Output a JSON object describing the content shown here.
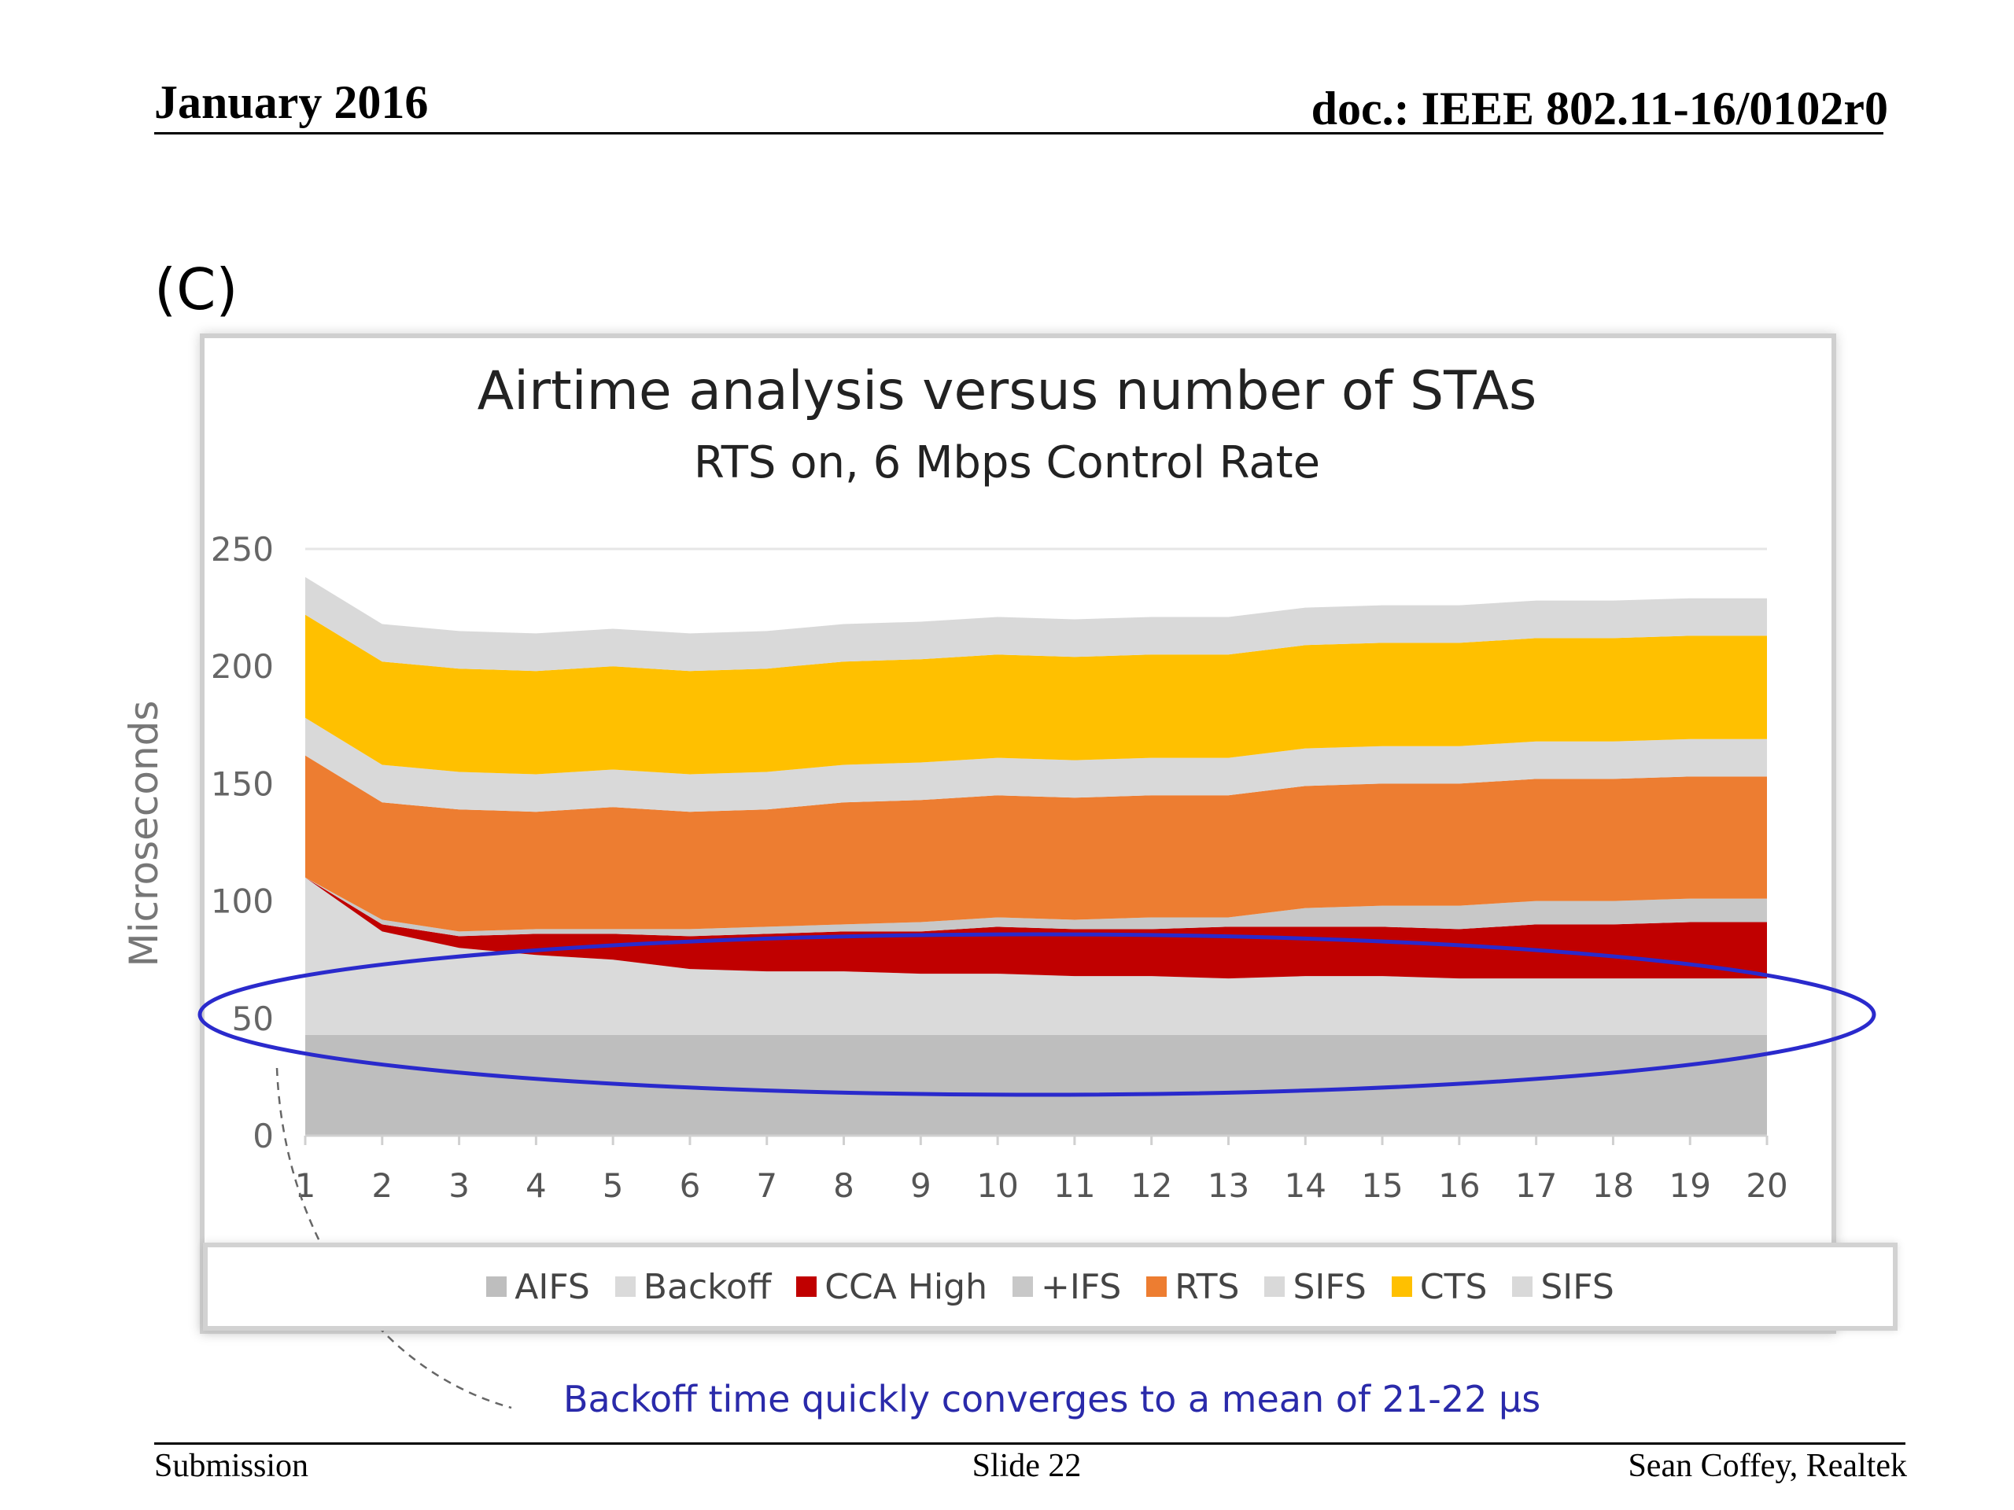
{
  "header": {
    "date": "January 2016",
    "doc": "doc.: IEEE 802.11-16/0102r0"
  },
  "panel_label": "(C)",
  "footer": {
    "left": "Submission",
    "center": "Slide 22",
    "right": "Sean Coffey, Realtek"
  },
  "annotation": "Backoff time quickly converges to a mean of 21-22 µs",
  "colors": {
    "aifs": "#bebebe",
    "backoff": "#dadada",
    "cca_high": "#c00000",
    "ifs": "#c8c8c8",
    "rts": "#ed7d31",
    "sifs": "#d9d9d9",
    "cts": "#ffc000",
    "sifs2": "#d9d9d9",
    "ellipse": "#2a2acc"
  },
  "chart_data": {
    "type": "area",
    "stacked": true,
    "title": "Airtime analysis versus number of STAs",
    "subtitle": "RTS on, 6 Mbps Control Rate",
    "xlabel": "",
    "ylabel": "Microseconds",
    "ylim": [
      0,
      250
    ],
    "yticks": [
      0,
      50,
      100,
      150,
      200,
      250
    ],
    "x": [
      1,
      2,
      3,
      4,
      5,
      6,
      7,
      8,
      9,
      10,
      11,
      12,
      13,
      14,
      15,
      16,
      17,
      18,
      19,
      20
    ],
    "legend_position": "bottom",
    "grid": "horizontal",
    "series": [
      {
        "name": "AIFS",
        "color_key": "aifs",
        "values": [
          43,
          43,
          43,
          43,
          43,
          43,
          43,
          43,
          43,
          43,
          43,
          43,
          43,
          43,
          43,
          43,
          43,
          43,
          43,
          43
        ]
      },
      {
        "name": "Backoff",
        "color_key": "backoff",
        "values": [
          67,
          44,
          37,
          34,
          32,
          28,
          27,
          27,
          26,
          26,
          25,
          25,
          24,
          25,
          25,
          24,
          24,
          24,
          24,
          24
        ]
      },
      {
        "name": "CCA High",
        "color_key": "cca_high",
        "values": [
          0,
          3,
          5,
          9,
          11,
          14,
          16,
          17,
          18,
          20,
          20,
          20,
          22,
          21,
          21,
          21,
          23,
          23,
          24,
          24
        ]
      },
      {
        "name": "+IFS",
        "color_key": "ifs",
        "values": [
          0,
          2,
          2,
          2,
          2,
          3,
          3,
          3,
          4,
          4,
          4,
          5,
          4,
          8,
          9,
          10,
          10,
          10,
          10,
          10
        ]
      },
      {
        "name": "RTS",
        "color_key": "rts",
        "values": [
          52,
          50,
          52,
          50,
          52,
          50,
          50,
          52,
          52,
          52,
          52,
          52,
          52,
          52,
          52,
          52,
          52,
          52,
          52,
          52
        ]
      },
      {
        "name": "SIFS",
        "color_key": "sifs",
        "values": [
          16,
          16,
          16,
          16,
          16,
          16,
          16,
          16,
          16,
          16,
          16,
          16,
          16,
          16,
          16,
          16,
          16,
          16,
          16,
          16
        ]
      },
      {
        "name": "CTS",
        "color_key": "cts",
        "values": [
          44,
          44,
          44,
          44,
          44,
          44,
          44,
          44,
          44,
          44,
          44,
          44,
          44,
          44,
          44,
          44,
          44,
          44,
          44,
          44
        ]
      },
      {
        "name": "SIFS",
        "color_key": "sifs2",
        "values": [
          16,
          16,
          16,
          16,
          16,
          16,
          16,
          16,
          16,
          16,
          16,
          16,
          16,
          16,
          16,
          16,
          16,
          16,
          16,
          16
        ]
      }
    ]
  }
}
